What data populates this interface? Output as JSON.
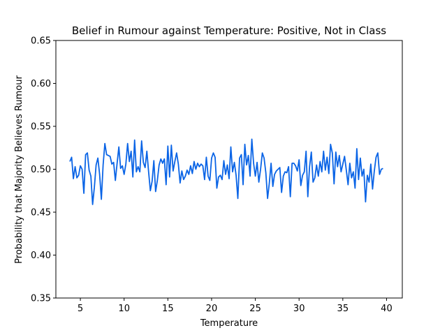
{
  "chart_data": {
    "type": "line",
    "title": "Belief in Rumour against Temperature: Positive, Not in Class",
    "xlabel": "Temperature",
    "ylabel": "Probability that Majority Believes Rumour",
    "xlim": [
      2.2,
      41.8
    ],
    "ylim": [
      0.35,
      0.65
    ],
    "xticks": [
      5,
      10,
      15,
      20,
      25,
      30,
      35,
      40
    ],
    "yticks": [
      0.35,
      0.4,
      0.45,
      0.5,
      0.55,
      0.6,
      0.65
    ],
    "xtick_labels": [
      "5",
      "10",
      "15",
      "20",
      "25",
      "30",
      "35",
      "40"
    ],
    "ytick_labels": [
      "0.35",
      "0.40",
      "0.45",
      "0.50",
      "0.55",
      "0.60",
      "0.65"
    ],
    "grid": false,
    "line_color": "#0a64e6",
    "series": [
      {
        "x_start": 3.8,
        "x_step": 0.2,
        "values": [
          0.509,
          0.514,
          0.489,
          0.503,
          0.49,
          0.493,
          0.504,
          0.5,
          0.472,
          0.517,
          0.519,
          0.499,
          0.492,
          0.459,
          0.479,
          0.505,
          0.513,
          0.494,
          0.465,
          0.505,
          0.53,
          0.517,
          0.516,
          0.515,
          0.506,
          0.508,
          0.487,
          0.507,
          0.526,
          0.501,
          0.504,
          0.494,
          0.506,
          0.53,
          0.509,
          0.521,
          0.491,
          0.534,
          0.497,
          0.503,
          0.497,
          0.533,
          0.508,
          0.502,
          0.521,
          0.497,
          0.475,
          0.486,
          0.51,
          0.474,
          0.487,
          0.505,
          0.512,
          0.507,
          0.512,
          0.482,
          0.527,
          0.491,
          0.528,
          0.498,
          0.509,
          0.519,
          0.506,
          0.484,
          0.498,
          0.488,
          0.492,
          0.499,
          0.494,
          0.504,
          0.495,
          0.509,
          0.5,
          0.507,
          0.503,
          0.506,
          0.504,
          0.488,
          0.514,
          0.492,
          0.487,
          0.513,
          0.519,
          0.514,
          0.478,
          0.491,
          0.493,
          0.488,
          0.51,
          0.494,
          0.505,
          0.489,
          0.526,
          0.497,
          0.508,
          0.493,
          0.466,
          0.513,
          0.517,
          0.482,
          0.529,
          0.505,
          0.516,
          0.492,
          0.535,
          0.507,
          0.492,
          0.508,
          0.485,
          0.5,
          0.519,
          0.513,
          0.496,
          0.466,
          0.484,
          0.507,
          0.48,
          0.494,
          0.498,
          0.5,
          0.502,
          0.473,
          0.492,
          0.497,
          0.496,
          0.503,
          0.468,
          0.507,
          0.507,
          0.504,
          0.498,
          0.511,
          0.481,
          0.493,
          0.497,
          0.521,
          0.468,
          0.503,
          0.52,
          0.485,
          0.49,
          0.505,
          0.492,
          0.509,
          0.497,
          0.521,
          0.499,
          0.514,
          0.495,
          0.529,
          0.519,
          0.483,
          0.52,
          0.503,
          0.516,
          0.497,
          0.506,
          0.515,
          0.499,
          0.482,
          0.507,
          0.49,
          0.497,
          0.478,
          0.524,
          0.488,
          0.513,
          0.492,
          0.5,
          0.462,
          0.493,
          0.485,
          0.506,
          0.477,
          0.498,
          0.514,
          0.519,
          0.494,
          0.5,
          0.501
        ]
      }
    ]
  }
}
